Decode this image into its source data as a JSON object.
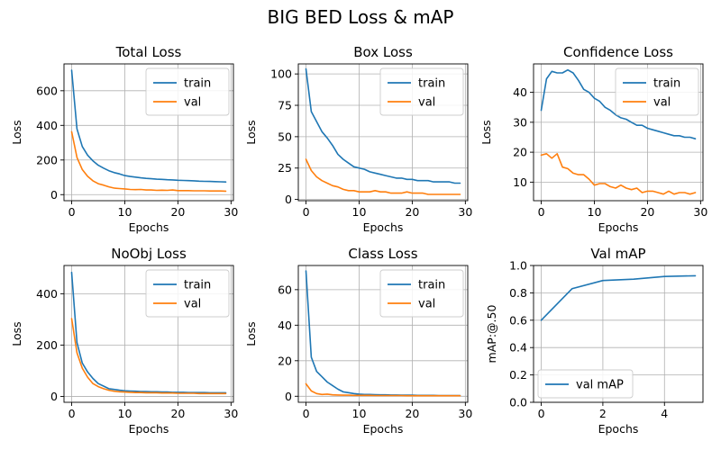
{
  "figure": {
    "title": "BIG BED Loss & mAP"
  },
  "colors": {
    "train": "#1f77b4",
    "val": "#ff7f0e"
  },
  "chart_data": [
    {
      "type": "line",
      "title": "Total Loss",
      "xlabel": "Epochs",
      "ylabel": "Loss",
      "xlim": [
        -1.45,
        30.45
      ],
      "ylim": [
        -35,
        755
      ],
      "xticks": [
        "0",
        "10",
        "20",
        "30"
      ],
      "yticks": [
        "0",
        "200",
        "400",
        "600"
      ],
      "legend": "upper-right",
      "grid": true,
      "series": [
        {
          "name": "train",
          "x": [
            0,
            1,
            2,
            3,
            4,
            5,
            6,
            7,
            8,
            9,
            10,
            11,
            12,
            13,
            14,
            15,
            16,
            17,
            18,
            19,
            20,
            21,
            22,
            23,
            24,
            25,
            26,
            27,
            28,
            29
          ],
          "values": [
            718,
            380,
            278,
            228,
            195,
            170,
            153,
            138,
            127,
            120,
            110,
            105,
            101,
            97,
            94,
            92,
            89,
            88,
            86,
            85,
            83,
            82,
            81,
            80,
            78,
            77,
            76,
            75,
            74,
            73
          ]
        },
        {
          "name": "val",
          "x": [
            0,
            1,
            2,
            3,
            4,
            5,
            6,
            7,
            8,
            9,
            10,
            11,
            12,
            13,
            14,
            15,
            16,
            17,
            18,
            19,
            20,
            21,
            22,
            23,
            24,
            25,
            26,
            27,
            28,
            29
          ],
          "values": [
            363,
            215,
            145,
            106,
            80,
            63,
            55,
            45,
            38,
            35,
            33,
            30,
            29,
            30,
            27,
            27,
            25,
            26,
            25,
            27,
            23,
            23,
            23,
            22,
            22,
            22,
            21,
            21,
            21,
            20
          ]
        }
      ]
    },
    {
      "type": "line",
      "title": "Box Loss",
      "xlabel": "Epochs",
      "ylabel": "Loss",
      "xlim": [
        -1.45,
        30.45
      ],
      "ylim": [
        -1,
        108
      ],
      "xticks": [
        "0",
        "10",
        "20",
        "30"
      ],
      "yticks": [
        "0",
        "25",
        "50",
        "75",
        "100"
      ],
      "legend": "upper-right",
      "grid": true,
      "series": [
        {
          "name": "train",
          "x": [
            0,
            1,
            2,
            3,
            4,
            5,
            6,
            7,
            8,
            9,
            10,
            11,
            12,
            13,
            14,
            15,
            16,
            17,
            18,
            19,
            20,
            21,
            22,
            23,
            24,
            25,
            26,
            27,
            28,
            29
          ],
          "values": [
            104,
            70,
            62,
            54,
            49,
            43,
            36,
            32,
            29,
            26,
            25,
            24,
            22,
            21,
            20,
            19,
            18,
            17,
            17,
            16,
            16,
            15,
            15,
            15,
            14,
            14,
            14,
            14,
            13,
            13
          ]
        },
        {
          "name": "val",
          "x": [
            0,
            1,
            2,
            3,
            4,
            5,
            6,
            7,
            8,
            9,
            10,
            11,
            12,
            13,
            14,
            15,
            16,
            17,
            18,
            19,
            20,
            21,
            22,
            23,
            24,
            25,
            26,
            27,
            28,
            29
          ],
          "values": [
            32,
            23,
            18,
            15,
            13,
            11,
            10,
            8,
            7,
            7,
            6,
            6,
            6,
            7,
            6,
            6,
            5,
            5,
            5,
            6,
            5,
            5,
            5,
            4,
            4,
            4,
            4,
            4,
            4,
            4
          ]
        }
      ]
    },
    {
      "type": "line",
      "title": "Confidence Loss",
      "xlabel": "Epochs",
      "ylabel": "Loss",
      "xlim": [
        -1.45,
        30.45
      ],
      "ylim": [
        3.8,
        49.5
      ],
      "xticks": [
        "0",
        "10",
        "20",
        "30"
      ],
      "yticks": [
        "10",
        "20",
        "30",
        "40"
      ],
      "legend": "upper-right",
      "grid": true,
      "series": [
        {
          "name": "train",
          "x": [
            0,
            1,
            2,
            3,
            4,
            5,
            6,
            7,
            8,
            9,
            10,
            11,
            12,
            13,
            14,
            15,
            16,
            17,
            18,
            19,
            20,
            21,
            22,
            23,
            24,
            25,
            26,
            27,
            28,
            29
          ],
          "values": [
            34,
            44.5,
            47,
            46.5,
            46.5,
            47.5,
            46.5,
            44,
            41,
            40,
            38,
            37,
            35,
            34,
            32.5,
            31.5,
            31,
            30,
            29,
            29,
            28,
            27.5,
            27,
            26.5,
            26,
            25.5,
            25.5,
            25,
            25,
            24.5
          ]
        },
        {
          "name": "val",
          "x": [
            0,
            1,
            2,
            3,
            4,
            5,
            6,
            7,
            8,
            9,
            10,
            11,
            12,
            13,
            14,
            15,
            16,
            17,
            18,
            19,
            20,
            21,
            22,
            23,
            24,
            25,
            26,
            27,
            28,
            29
          ],
          "values": [
            19,
            19.5,
            18,
            19.5,
            15,
            14.5,
            13,
            12.5,
            12.5,
            11,
            9,
            9.5,
            9.5,
            8.5,
            8,
            9,
            8,
            7.5,
            8,
            6.5,
            7,
            7,
            6.5,
            6,
            7,
            6,
            6.5,
            6.5,
            6,
            6.5
          ]
        }
      ]
    },
    {
      "type": "line",
      "title": "NoObj Loss",
      "xlabel": "Epochs",
      "ylabel": "Loss",
      "xlim": [
        -1.45,
        30.45
      ],
      "ylim": [
        -23,
        510
      ],
      "xticks": [
        "0",
        "10",
        "20",
        "30"
      ],
      "yticks": [
        "0",
        "200",
        "400"
      ],
      "legend": "upper-right",
      "grid": true,
      "series": [
        {
          "name": "train",
          "x": [
            0,
            1,
            2,
            3,
            4,
            5,
            6,
            7,
            8,
            9,
            10,
            11,
            12,
            13,
            14,
            15,
            16,
            17,
            18,
            19,
            20,
            21,
            22,
            23,
            24,
            25,
            26,
            27,
            28,
            29
          ],
          "values": [
            483,
            210,
            130,
            95,
            70,
            50,
            40,
            30,
            27,
            24,
            22,
            21,
            20,
            19,
            19,
            18,
            18,
            17,
            17,
            16,
            16,
            16,
            15,
            15,
            15,
            15,
            14,
            14,
            14,
            14
          ]
        },
        {
          "name": "val",
          "x": [
            0,
            1,
            2,
            3,
            4,
            5,
            6,
            7,
            8,
            9,
            10,
            11,
            12,
            13,
            14,
            15,
            16,
            17,
            18,
            19,
            20,
            21,
            22,
            23,
            24,
            25,
            26,
            27,
            28,
            29
          ],
          "values": [
            303,
            170,
            110,
            75,
            50,
            38,
            30,
            24,
            20,
            18,
            17,
            16,
            15,
            15,
            14,
            14,
            14,
            13,
            13,
            13,
            12,
            12,
            12,
            12,
            11,
            11,
            11,
            11,
            11,
            11
          ]
        }
      ]
    },
    {
      "type": "line",
      "title": "Class Loss",
      "xlabel": "Epochs",
      "ylabel": "Loss",
      "xlim": [
        -1.45,
        30.45
      ],
      "ylim": [
        -3.4,
        73.6
      ],
      "xticks": [
        "0",
        "10",
        "20",
        "30"
      ],
      "yticks": [
        "0",
        "20",
        "40",
        "60"
      ],
      "legend": "upper-right",
      "grid": true,
      "series": [
        {
          "name": "train",
          "x": [
            0,
            1,
            2,
            3,
            4,
            5,
            6,
            7,
            8,
            9,
            10,
            11,
            12,
            13,
            14,
            15,
            16,
            17,
            18,
            19,
            20,
            21,
            22,
            23,
            24,
            25,
            26,
            27,
            28,
            29
          ],
          "values": [
            70.5,
            22,
            14,
            11,
            8,
            6,
            4,
            2.5,
            2,
            1.5,
            1.2,
            1,
            1,
            0.9,
            0.8,
            0.8,
            0.7,
            0.7,
            0.6,
            0.6,
            0.6,
            0.5,
            0.5,
            0.5,
            0.5,
            0.4,
            0.4,
            0.4,
            0.4,
            0.4
          ]
        },
        {
          "name": "val",
          "x": [
            0,
            1,
            2,
            3,
            4,
            5,
            6,
            7,
            8,
            9,
            10,
            11,
            12,
            13,
            14,
            15,
            16,
            17,
            18,
            19,
            20,
            21,
            22,
            23,
            24,
            25,
            26,
            27,
            28,
            29
          ],
          "values": [
            7,
            3,
            1.5,
            1,
            1.2,
            0.8,
            0.7,
            0.6,
            0.6,
            0.5,
            0.5,
            0.5,
            0.5,
            0.4,
            0.4,
            0.4,
            0.4,
            0.4,
            0.4,
            0.3,
            0.3,
            0.3,
            0.3,
            0.3,
            0.3,
            0.3,
            0.3,
            0.3,
            0.3,
            0.3
          ]
        }
      ]
    },
    {
      "type": "line",
      "title": "Val mAP",
      "xlabel": "Epochs",
      "ylabel": "mAP:@.50",
      "xlim": [
        -0.25,
        5.25
      ],
      "ylim": [
        0,
        1
      ],
      "xticks": [
        "0",
        "2",
        "4"
      ],
      "yticks": [
        "0.0",
        "0.2",
        "0.4",
        "0.6",
        "0.8",
        "1.0"
      ],
      "legend": "lower-left",
      "grid": true,
      "series": [
        {
          "name": "val mAP",
          "x": [
            0,
            1,
            2,
            3,
            4,
            5
          ],
          "values": [
            0.6,
            0.83,
            0.89,
            0.9,
            0.92,
            0.925
          ]
        }
      ]
    }
  ]
}
